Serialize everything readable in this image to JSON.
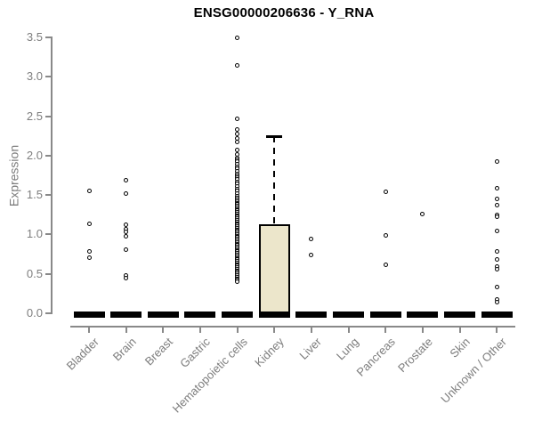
{
  "chart_data": {
    "type": "boxplot",
    "title": "ENSG00000206636 - Y_RNA",
    "ylabel": "Expression",
    "xlabel": "",
    "ylim": [
      0,
      3.5
    ],
    "yticks": [
      0.0,
      0.5,
      1.0,
      1.5,
      2.0,
      2.5,
      3.0,
      3.5
    ],
    "grid": "off",
    "legend": "none",
    "categories": [
      "Bladder",
      "Brain",
      "Breast",
      "Gastric",
      "Hematopoietic cells",
      "Kidney",
      "Liver",
      "Lung",
      "Pancreas",
      "Prostate",
      "Skin",
      "Unknown / Other"
    ],
    "boxes": [
      {
        "category": "Bladder",
        "median": 0,
        "q1": 0,
        "q3": 0,
        "whisker_low": 0,
        "whisker_high": 0,
        "outliers": [
          1.55,
          1.14,
          0.78,
          0.71
        ]
      },
      {
        "category": "Brain",
        "median": 0,
        "q1": 0,
        "q3": 0,
        "whisker_low": 0,
        "whisker_high": 0,
        "outliers": [
          1.69,
          1.52,
          1.12,
          1.07,
          1.03,
          0.98,
          0.81,
          0.48,
          0.45
        ]
      },
      {
        "category": "Breast",
        "median": 0,
        "q1": 0,
        "q3": 0,
        "whisker_low": 0,
        "whisker_high": 0,
        "outliers": []
      },
      {
        "category": "Gastric",
        "median": 0,
        "q1": 0,
        "q3": 0,
        "whisker_low": 0,
        "whisker_high": 0,
        "outliers": []
      },
      {
        "category": "Hematopoietic cells",
        "median": 0,
        "q1": 0,
        "q3": 0,
        "whisker_low": 0,
        "whisker_high": 0,
        "outliers": [
          3.49,
          3.15,
          2.47,
          2.33,
          2.27,
          2.22,
          2.17,
          2.07,
          2.02,
          1.97,
          1.95,
          1.92,
          1.89,
          1.86,
          1.83,
          1.8,
          1.77,
          1.75,
          1.72,
          1.7,
          1.67,
          1.64,
          1.61,
          1.58,
          1.55,
          1.52,
          1.49,
          1.46,
          1.44,
          1.42,
          1.4,
          1.38,
          1.36,
          1.34,
          1.32,
          1.3,
          1.28,
          1.26,
          1.24,
          1.22,
          1.2,
          1.18,
          1.16,
          1.14,
          1.12,
          1.1,
          1.08,
          1.06,
          1.04,
          1.02,
          1.0,
          0.98,
          0.96,
          0.94,
          0.92,
          0.9,
          0.88,
          0.86,
          0.84,
          0.82,
          0.8,
          0.78,
          0.76,
          0.74,
          0.72,
          0.7,
          0.68,
          0.66,
          0.64,
          0.62,
          0.6,
          0.58,
          0.56,
          0.54,
          0.52,
          0.5,
          0.48,
          0.46,
          0.44,
          0.42,
          0.4
        ]
      },
      {
        "category": "Kidney",
        "median": 0,
        "q1": 0,
        "q3": 1.13,
        "whisker_low": 0,
        "whisker_high": 2.25,
        "outliers": []
      },
      {
        "category": "Liver",
        "median": 0,
        "q1": 0,
        "q3": 0,
        "whisker_low": 0,
        "whisker_high": 0,
        "outliers": [
          0.94,
          0.74
        ]
      },
      {
        "category": "Lung",
        "median": 0,
        "q1": 0,
        "q3": 0,
        "whisker_low": 0,
        "whisker_high": 0,
        "outliers": []
      },
      {
        "category": "Pancreas",
        "median": 0,
        "q1": 0,
        "q3": 0,
        "whisker_low": 0,
        "whisker_high": 0,
        "outliers": [
          1.54,
          0.99,
          0.62
        ]
      },
      {
        "category": "Prostate",
        "median": 0,
        "q1": 0,
        "q3": 0,
        "whisker_low": 0,
        "whisker_high": 0,
        "outliers": [
          1.26
        ]
      },
      {
        "category": "Skin",
        "median": 0,
        "q1": 0,
        "q3": 0,
        "whisker_low": 0,
        "whisker_high": 0,
        "outliers": []
      },
      {
        "category": "Unknown / Other",
        "median": 0,
        "q1": 0,
        "q3": 0,
        "whisker_low": 0,
        "whisker_high": 0,
        "outliers": [
          1.92,
          1.59,
          1.45,
          1.37,
          1.25,
          1.22,
          1.05,
          0.78,
          0.68,
          0.59,
          0.56,
          0.33,
          0.17,
          0.14
        ]
      }
    ],
    "style": {
      "box_fill": "#ece6cb",
      "box_stroke": "#000000",
      "data_color": "#000000",
      "axis_color": "#898989",
      "label_color": "#7d7d7d",
      "title_color": "#000000",
      "background": "#ffffff"
    }
  }
}
